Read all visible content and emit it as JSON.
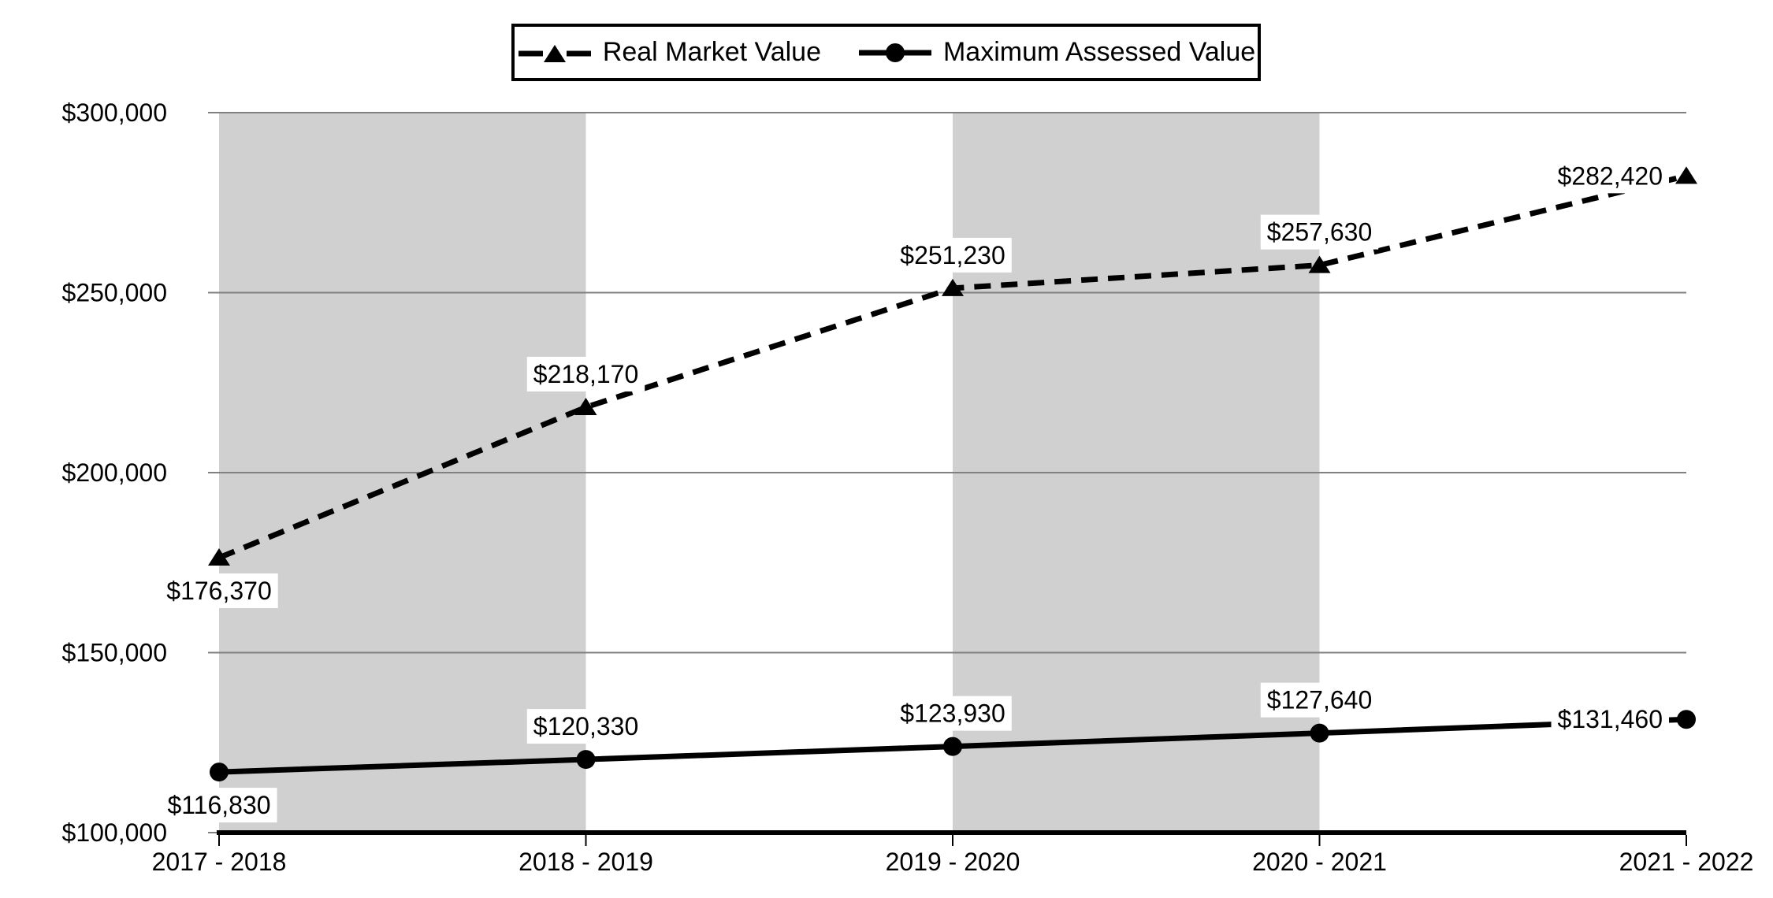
{
  "chart_data": {
    "type": "line",
    "title": "",
    "xlabel": "",
    "ylabel": "",
    "categories": [
      "2017 - 2018",
      "2018 - 2019",
      "2019 - 2020",
      "2020 - 2021",
      "2021 - 2022"
    ],
    "series": [
      {
        "name": "Real Market Value",
        "values": [
          176370,
          218170,
          251230,
          257630,
          282420
        ],
        "labels": [
          "$176,370",
          "$218,170",
          "$251,230",
          "$257,630",
          "$282,420"
        ],
        "label_positions": [
          "below",
          "above",
          "above",
          "above",
          "left"
        ],
        "marker": "triangle",
        "line_style": "dashed"
      },
      {
        "name": "Maximum Assessed Value",
        "values": [
          116830,
          120330,
          123930,
          127640,
          131460
        ],
        "labels": [
          "$116,830",
          "$120,330",
          "$123,930",
          "$127,640",
          "$131,460"
        ],
        "label_positions": [
          "below",
          "above",
          "above",
          "above",
          "left"
        ],
        "marker": "circle",
        "line_style": "solid"
      }
    ],
    "ylim": [
      100000,
      300000
    ],
    "ytick_interval": 50000,
    "ytick_labels_top_to_bottom": [
      "$300,000",
      "$250,000",
      "$200,000",
      "$150,000",
      "$100,000"
    ],
    "grid": true,
    "legend_position": "top-center",
    "band_columns": [
      0,
      2
    ],
    "colors": {
      "series": "#000000",
      "gridline": "#808080",
      "band": "#d0d0d0",
      "label_background": "#ffffff",
      "background": "#ffffff"
    }
  }
}
